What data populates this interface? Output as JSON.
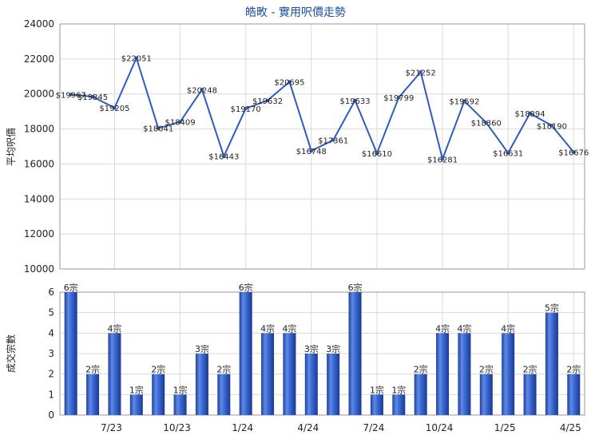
{
  "chart_data": [
    {
      "type": "line",
      "title": "皓畋 - 實用呎價走勢",
      "ylabel": "平均呎價",
      "ylim": [
        10000,
        24000
      ],
      "yticks": [
        10000,
        12000,
        14000,
        16000,
        18000,
        20000,
        22000,
        24000
      ],
      "grid": true,
      "series": [
        {
          "values": [
            19967,
            19845,
            19205,
            22051,
            18041,
            18409,
            20248,
            16443,
            19170,
            19632,
            20695,
            16748,
            17361,
            19633,
            16610,
            19799,
            21252,
            16281,
            19592,
            18360,
            16631,
            18894,
            18190,
            16676
          ],
          "labels": [
            "$19967",
            "$19845",
            "$19205",
            "$22051",
            "$18041",
            "$18409",
            "$20248",
            "$16443",
            "$19170",
            "$19632",
            "$20695",
            "$16748",
            "$17361",
            "$19633",
            "$16610",
            "$19799",
            "$21252",
            "$16281",
            "$19592",
            "$18360",
            "$16631",
            "$18894",
            "$18190",
            "$16676"
          ],
          "color": "#2e5bbf"
        }
      ]
    },
    {
      "type": "bar",
      "ylabel": "成交宗數",
      "ylim": [
        0,
        6
      ],
      "yticks": [
        0,
        1,
        2,
        3,
        4,
        5,
        6
      ],
      "grid": true,
      "series": [
        {
          "values": [
            6,
            2,
            4,
            1,
            2,
            1,
            3,
            2,
            6,
            4,
            4,
            3,
            3,
            6,
            1,
            1,
            2,
            4,
            4,
            2,
            4,
            2,
            5,
            2
          ],
          "labels": [
            "6宗",
            "2宗",
            "4宗",
            "1宗",
            "2宗",
            "1宗",
            "3宗",
            "2宗",
            "6宗",
            "4宗",
            "4宗",
            "3宗",
            "3宗",
            "6宗",
            "1宗",
            "1宗",
            "2宗",
            "4宗",
            "4宗",
            "2宗",
            "4宗",
            "2宗",
            "5宗",
            "2宗"
          ],
          "color": "#2f5fcf"
        }
      ],
      "xtick_labels": [
        {
          "label": "7/23",
          "index": 2
        },
        {
          "label": "10/23",
          "index": 5
        },
        {
          "label": "1/24",
          "index": 8
        },
        {
          "label": "4/24",
          "index": 11
        },
        {
          "label": "7/24",
          "index": 14
        },
        {
          "label": "10/24",
          "index": 17
        },
        {
          "label": "1/25",
          "index": 20
        },
        {
          "label": "4/25",
          "index": 23
        }
      ]
    }
  ]
}
